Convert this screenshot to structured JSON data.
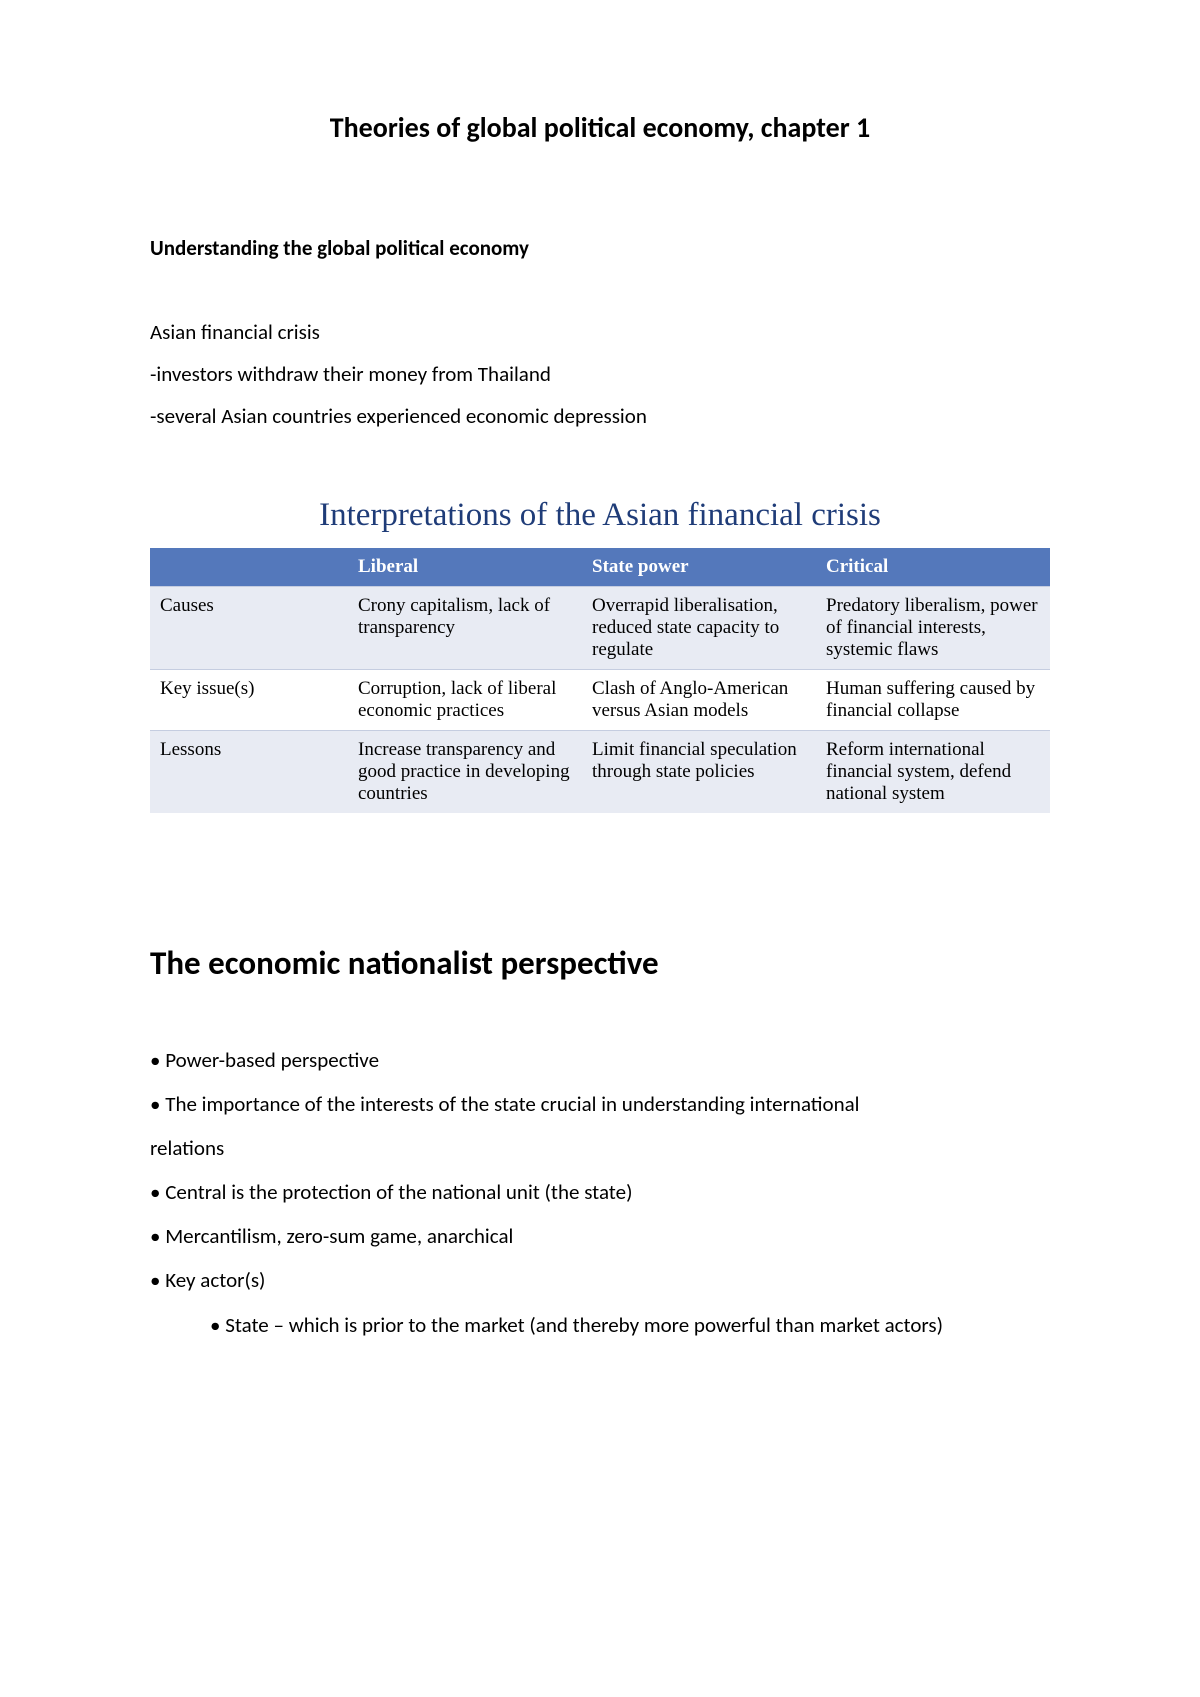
{
  "colors": {
    "page_bg": "#ffffff",
    "text": "#000000",
    "table_header_bg": "#5478bb",
    "table_header_text": "#ffffff",
    "table_row_odd_bg": "#e8ebf3",
    "table_row_even_bg": "#ffffff",
    "table_border": "#c5cde0",
    "table_title_color": "#1f3c78"
  },
  "typography": {
    "body_font": "Calibri",
    "serif_font": "Times New Roman",
    "title_size_pt": 21,
    "body_size_pt": 16,
    "table_title_size_pt": 25,
    "h2_size_pt": 25,
    "table_cell_size_pt": 14
  },
  "title": "Theories of global political economy, chapter 1",
  "section1": {
    "heading": "Understanding the global political economy",
    "lines": [
      "Asian financial crisis",
      "-investors withdraw their money from Thailand",
      "-several Asian countries experienced economic depression"
    ]
  },
  "table": {
    "title": "Interpretations of the Asian financial crisis",
    "type": "table",
    "column_widths_pct": [
      22,
      26,
      26,
      26
    ],
    "columns": [
      "",
      "Liberal",
      "State power",
      "Critical"
    ],
    "rows": [
      [
        "Causes",
        "Crony capitalism, lack of transparency",
        "Overrapid liberalisation, reduced state capacity to regulate",
        "Predatory liberalism, power of financial interests, systemic flaws"
      ],
      [
        "Key issue(s)",
        "Corruption, lack of liberal economic practices",
        "Clash of Anglo-American versus Asian models",
        "Human suffering caused by financial collapse"
      ],
      [
        "Lessons",
        "Increase transparency and good practice in developing countries",
        "Limit financial speculation through state policies",
        "Reform international financial system, defend national system"
      ]
    ]
  },
  "section2": {
    "heading": "The economic nationalist perspective",
    "bullets": [
      "• Power-based perspective",
      "• The importance of the interests of the state crucial in understanding international",
      "relations",
      "• Central is the protection of the national unit (the state)",
      "• Mercantilism, zero-sum game, anarchical",
      "• Key actor(s)"
    ],
    "sub_bullet": "•    State – which is prior to the market (and thereby more powerful than market actors)"
  }
}
